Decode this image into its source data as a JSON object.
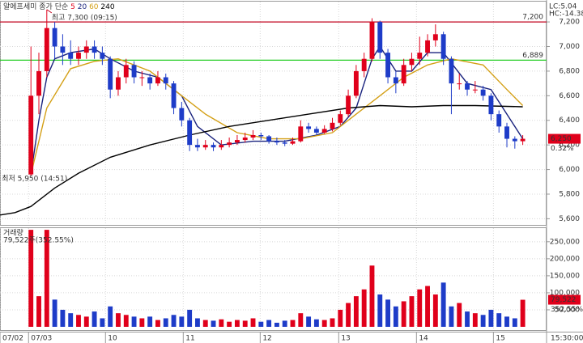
{
  "chart_data": [
    {
      "type": "candlestick",
      "title": "알에프세미",
      "legend_prefix": "종가 단순",
      "ma5_label": {
        "name": "5",
        "color": "#e0001b"
      },
      "high_label": "최고 7,300 (09:15)",
      "low_label": "최저 5,950 (14:51)",
      "lc_label": "LC:5.04",
      "hc_label": "HC:-14.38",
      "last_price": {
        "value": 6250,
        "label": "6,250"
      },
      "change_label": "0.32%",
      "up_color": "#e0001b",
      "down_color": "#1e3cc8",
      "xlim": [
        -3.9,
        65
      ],
      "ylim": [
        5550,
        7365
      ],
      "yticks": [
        {
          "value": 5600,
          "label": "5,600"
        },
        {
          "value": 5800,
          "label": "5,800"
        },
        {
          "value": 6000,
          "label": "6,000"
        },
        {
          "value": 6200,
          "label": "6,200"
        },
        {
          "value": 6400,
          "label": "6,400"
        },
        {
          "value": 6600,
          "label": "6,600"
        },
        {
          "value": 6800,
          "label": "6,800"
        },
        {
          "value": 7000,
          "label": "7,000"
        },
        {
          "value": 7200,
          "label": "7,200"
        }
      ],
      "xticks": [
        {
          "value": -3.9,
          "label": "07/02"
        },
        {
          "value": -0.3,
          "label": "07/03"
        },
        {
          "value": 9.4,
          "label": "10"
        },
        {
          "value": 19.2,
          "label": "11"
        },
        {
          "value": 28.9,
          "label": "12"
        },
        {
          "value": 38.8,
          "label": "13"
        },
        {
          "value": 48.6,
          "label": "14"
        },
        {
          "value": 58.3,
          "label": "15"
        }
      ],
      "time_label": "15:30:00",
      "grid": true,
      "hlines": [
        {
          "value": 7200,
          "label": "7,200",
          "color": "#c0001b"
        },
        {
          "value": 6889,
          "label": "6,889",
          "color": "#22cc22"
        }
      ],
      "candles": [
        [
          5960,
          7000,
          5950,
          6600
        ],
        [
          6600,
          6950,
          6450,
          6800
        ],
        [
          6800,
          7300,
          6750,
          7150
        ],
        [
          7150,
          7200,
          6900,
          7000
        ],
        [
          7000,
          7100,
          6850,
          6950
        ],
        [
          6950,
          7050,
          6850,
          6900
        ],
        [
          6900,
          7000,
          6850,
          6950
        ],
        [
          6950,
          7050,
          6900,
          7000
        ],
        [
          7000,
          7050,
          6900,
          6950
        ],
        [
          6950,
          7000,
          6850,
          6900
        ],
        [
          6900,
          6920,
          6580,
          6650
        ],
        [
          6650,
          6800,
          6600,
          6750
        ],
        [
          6750,
          6900,
          6700,
          6850
        ],
        [
          6850,
          6880,
          6700,
          6750
        ],
        [
          6750,
          6800,
          6680,
          6750
        ],
        [
          6750,
          6780,
          6650,
          6700
        ],
        [
          6700,
          6800,
          6680,
          6750
        ],
        [
          6750,
          6780,
          6650,
          6700
        ],
        [
          6700,
          6720,
          6450,
          6500
        ],
        [
          6500,
          6550,
          6350,
          6400
        ],
        [
          6400,
          6420,
          6150,
          6200
        ],
        [
          6200,
          6250,
          6150,
          6180
        ],
        [
          6180,
          6240,
          6160,
          6200
        ],
        [
          6200,
          6220,
          6150,
          6180
        ],
        [
          6180,
          6240,
          6160,
          6200
        ],
        [
          6200,
          6260,
          6180,
          6220
        ],
        [
          6220,
          6280,
          6200,
          6240
        ],
        [
          6240,
          6300,
          6220,
          6260
        ],
        [
          6260,
          6320,
          6240,
          6280
        ],
        [
          6280,
          6300,
          6240,
          6270
        ],
        [
          6270,
          6280,
          6210,
          6230
        ],
        [
          6230,
          6260,
          6200,
          6220
        ],
        [
          6220,
          6240,
          6190,
          6210
        ],
        [
          6210,
          6260,
          6200,
          6230
        ],
        [
          6230,
          6400,
          6220,
          6350
        ],
        [
          6350,
          6380,
          6300,
          6330
        ],
        [
          6330,
          6350,
          6280,
          6300
        ],
        [
          6300,
          6360,
          6290,
          6330
        ],
        [
          6330,
          6420,
          6310,
          6380
        ],
        [
          6380,
          6480,
          6360,
          6450
        ],
        [
          6450,
          6650,
          6430,
          6600
        ],
        [
          6600,
          6850,
          6580,
          6800
        ],
        [
          6800,
          6950,
          6750,
          6900
        ],
        [
          6900,
          7230,
          6880,
          7200
        ],
        [
          7200,
          7210,
          6900,
          6950
        ],
        [
          6950,
          6980,
          6700,
          6750
        ],
        [
          6750,
          6800,
          6620,
          6700
        ],
        [
          6700,
          6900,
          6680,
          6850
        ],
        [
          6850,
          6950,
          6800,
          6900
        ],
        [
          6900,
          7080,
          6850,
          6950
        ],
        [
          6950,
          7100,
          6920,
          7050
        ],
        [
          7050,
          7180,
          7000,
          7100
        ],
        [
          7100,
          7120,
          6850,
          6900
        ],
        [
          6900,
          6920,
          6450,
          6700
        ],
        [
          6700,
          6780,
          6650,
          6700
        ],
        [
          6700,
          6720,
          6600,
          6650
        ],
        [
          6650,
          6720,
          6620,
          6650
        ],
        [
          6650,
          6680,
          6560,
          6600
        ],
        [
          6600,
          6620,
          6400,
          6450
        ],
        [
          6450,
          6480,
          6300,
          6350
        ],
        [
          6350,
          6380,
          6180,
          6250
        ],
        [
          6250,
          6270,
          6170,
          6230
        ],
        [
          6230,
          6280,
          6200,
          6250
        ]
      ],
      "series": [
        {
          "name": "20",
          "color": "#1a237e",
          "x": [
            0,
            1,
            2,
            3,
            5,
            8,
            10,
            13,
            16,
            19,
            21,
            24,
            28,
            32,
            36,
            39,
            41,
            43,
            44,
            46,
            48,
            50,
            52,
            55,
            58,
            60,
            62
          ],
          "values": [
            5960,
            6400,
            6750,
            6900,
            6950,
            6980,
            6900,
            6800,
            6750,
            6600,
            6350,
            6200,
            6230,
            6230,
            6280,
            6350,
            6500,
            6900,
            7000,
            6800,
            6800,
            6950,
            6950,
            6700,
            6650,
            6450,
            6250
          ]
        },
        {
          "name": "60",
          "color": "#d4a017",
          "x": [
            0,
            2,
            5,
            8,
            11,
            15,
            18,
            22,
            26,
            30,
            34,
            38,
            41,
            44,
            47,
            50,
            53,
            57,
            60,
            62
          ],
          "values": [
            5960,
            6500,
            6820,
            6880,
            6900,
            6800,
            6650,
            6450,
            6300,
            6250,
            6250,
            6300,
            6450,
            6600,
            6750,
            6850,
            6900,
            6850,
            6650,
            6520
          ]
        },
        {
          "name": "240",
          "color": "#000000",
          "x": [
            -3.9,
            -2,
            0,
            3,
            6,
            10,
            15,
            20,
            25,
            30,
            35,
            40,
            44,
            48,
            52,
            56,
            62
          ],
          "values": [
            5630,
            5650,
            5700,
            5850,
            5970,
            6100,
            6200,
            6280,
            6350,
            6400,
            6450,
            6500,
            6520,
            6510,
            6520,
            6520,
            6510
          ]
        }
      ]
    },
    {
      "type": "bar",
      "title": "거래량",
      "subtitle": "79,522주(352.55%)",
      "last_volume": {
        "value": 79522,
        "label": "79,522"
      },
      "ratio_label": "352.55%",
      "ylim": [
        0,
        290000
      ],
      "yticks": [
        {
          "value": 50000,
          "label": "50,000"
        },
        {
          "value": 100000,
          "label": "100,000"
        },
        {
          "value": 150000,
          "label": "150,000"
        },
        {
          "value": 200000,
          "label": "200,000"
        },
        {
          "value": 250000,
          "label": "250,000"
        }
      ],
      "values": [
        285000,
        90000,
        285000,
        80000,
        50000,
        40000,
        35000,
        30000,
        45000,
        25000,
        60000,
        40000,
        35000,
        30000,
        25000,
        30000,
        20000,
        25000,
        35000,
        30000,
        50000,
        25000,
        20000,
        18000,
        22000,
        15000,
        20000,
        18000,
        25000,
        15000,
        20000,
        12000,
        18000,
        20000,
        40000,
        30000,
        22000,
        20000,
        25000,
        50000,
        70000,
        90000,
        110000,
        180000,
        95000,
        80000,
        60000,
        75000,
        90000,
        110000,
        120000,
        95000,
        130000,
        60000,
        70000,
        45000,
        40000,
        35000,
        50000,
        40000,
        30000,
        25000,
        79522
      ]
    }
  ]
}
